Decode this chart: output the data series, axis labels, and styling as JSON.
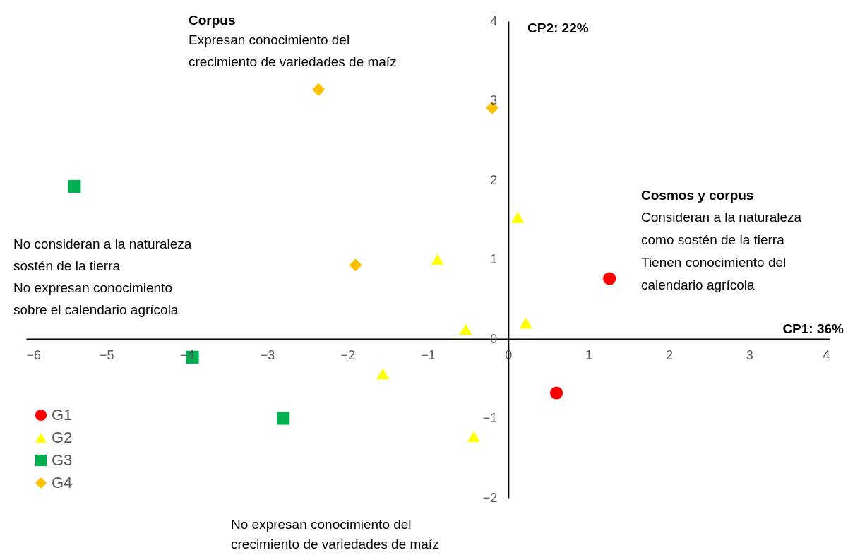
{
  "chart_data": {
    "type": "scatter",
    "xlabel": "CP1: 36%",
    "ylabel": "CP2: 22%",
    "xlim": [
      -6,
      4
    ],
    "ylim": [
      -2,
      4
    ],
    "xticks": [
      -6,
      -5,
      -4,
      -3,
      -2,
      -1,
      0,
      1,
      2,
      3,
      4
    ],
    "yticks": [
      -2,
      -1,
      0,
      1,
      2,
      3,
      4
    ],
    "grid": false,
    "legend": "bottom left",
    "series": [
      {
        "name": "G1",
        "color": "#ff0000",
        "marker": "circle",
        "x": [
          1.26,
          0.6
        ],
        "values": [
          0.76,
          -0.68
        ]
      },
      {
        "name": "G2",
        "color": "#ffff00",
        "marker": "triangle",
        "x": [
          0.12,
          -0.88,
          -0.53,
          0.22,
          -1.56,
          -0.43
        ],
        "values": [
          1.53,
          1.0,
          0.12,
          0.2,
          -0.44,
          -1.23
        ]
      },
      {
        "name": "G3",
        "color": "#00b050",
        "marker": "square",
        "x": [
          -5.4,
          -3.93,
          -2.8
        ],
        "values": [
          1.92,
          -0.23,
          -1.0
        ]
      },
      {
        "name": "G4",
        "color": "#ffc000",
        "marker": "diamond",
        "x": [
          -2.36,
          -0.2,
          -1.9
        ],
        "values": [
          3.14,
          2.91,
          0.93
        ]
      }
    ],
    "annotations": [
      "Corpus",
      "Expresan conocimiento del",
      "crecimiento de variedades de maíz",
      "Cosmos y corpus",
      "Consideran a la naturaleza",
      "como sostén de la tierra",
      "Tienen conocimiento del",
      "calendario agrícola",
      "No consideran a la naturaleza",
      "sostén de la tierra",
      "No expresan conocimiento",
      "sobre el calendario agrícola",
      "No expresan conocimiento del",
      "crecimiento de variedades de maíz"
    ]
  }
}
